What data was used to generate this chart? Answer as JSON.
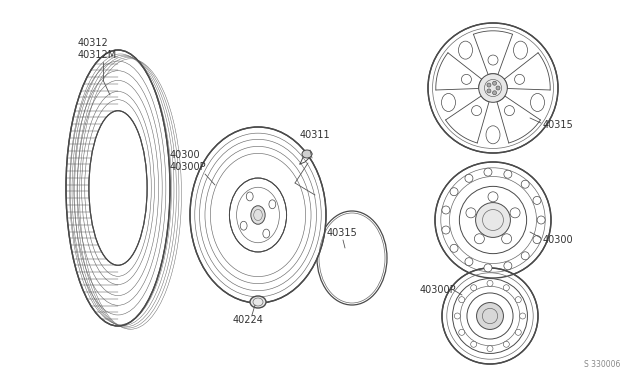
{
  "bg_color": "#ffffff",
  "line_color": "#4a4a4a",
  "thin_color": "#6a6a6a",
  "text_color": "#333333",
  "fig_width": 6.4,
  "fig_height": 3.72,
  "dpi": 100,
  "watermark": "S 330006",
  "parts": {
    "tire_label1": "40312",
    "tire_label2": "40312M",
    "wheel_label1": "40300",
    "wheel_label2": "40300P",
    "valve_label": "40311",
    "hubcap_oval_label": "40315",
    "lug_label": "40224",
    "alloy_label": "40315",
    "steel_label": "40300",
    "compact_label": "40300P"
  }
}
